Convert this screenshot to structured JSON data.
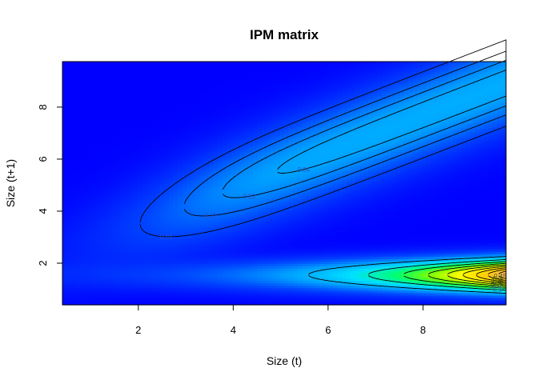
{
  "chart_data": {
    "type": "heatmap",
    "title": "IPM matrix",
    "xlabel": "Size (t)",
    "ylabel": "Size (t+1)",
    "xlim": [
      0.4,
      9.75
    ],
    "ylim": [
      0.4,
      9.75
    ],
    "xticks": [
      "2",
      "4",
      "6",
      "8"
    ],
    "yticks": [
      "2",
      "4",
      "6",
      "8"
    ],
    "grid": false,
    "colormap": [
      "#0000ff",
      "#0044ff",
      "#00a0ff",
      "#00e0ff",
      "#00ff70",
      "#80ff00",
      "#ffff00",
      "#ffd000",
      "#ffb060"
    ],
    "contours": {
      "upper_band": {
        "levels": [
          "0.01",
          "0.02",
          "0.03",
          "0.04"
        ]
      },
      "lower_band": {
        "levels": [
          "0.05",
          "0.1",
          "0.15",
          "0.2",
          "0.25",
          "0.3",
          "0.35",
          "0.4",
          "0.45"
        ]
      }
    }
  }
}
